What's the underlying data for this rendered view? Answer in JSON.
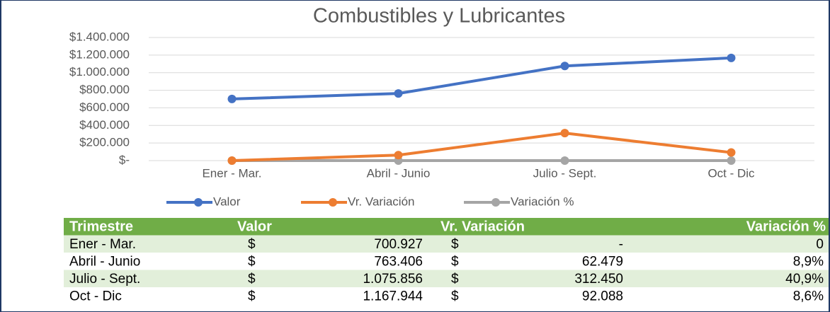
{
  "chart_data": {
    "type": "line",
    "title": "Combustibles y Lubricantes",
    "categories": [
      "Ener - Mar.",
      "Abril - Junio",
      "Julio - Sept.",
      "Oct - Dic"
    ],
    "series": [
      {
        "name": "Valor",
        "color": "#4472c4",
        "values": [
          700927,
          763406,
          1075856,
          1167944
        ]
      },
      {
        "name": "Vr. Variación",
        "color": "#ed7d31",
        "values": [
          0,
          62479,
          312450,
          92088
        ]
      },
      {
        "name": "Variación %",
        "color": "#a5a5a5",
        "values": [
          0,
          8.9,
          40.9,
          8.6
        ]
      }
    ],
    "ylim": [
      0,
      1400000
    ],
    "yticks": [
      {
        "value": 0,
        "label": "$-"
      },
      {
        "value": 200000,
        "label": "$200.000"
      },
      {
        "value": 400000,
        "label": "$400.000"
      },
      {
        "value": 600000,
        "label": "$600.000"
      },
      {
        "value": 800000,
        "label": "$800.000"
      },
      {
        "value": 1000000,
        "label": "$1.000.000"
      },
      {
        "value": 1200000,
        "label": "$1.200.000"
      },
      {
        "value": 1400000,
        "label": "$1.400.000"
      }
    ],
    "grid": true,
    "legend": "bottom"
  },
  "table": {
    "header": [
      "Trimestre",
      "Valor",
      "Vr. Variación",
      "Variación %"
    ],
    "rows": [
      [
        "Ener - Mar.",
        "$",
        "700.927",
        "$",
        "-",
        "0"
      ],
      [
        "Abril - Junio",
        "$",
        "763.406",
        "$",
        "62.479",
        "8,9%"
      ],
      [
        "Julio - Sept.",
        "$",
        "1.075.856",
        "$",
        "312.450",
        "40,9%"
      ],
      [
        "Oct - Dic",
        "$",
        "1.167.944",
        "$",
        "92.088",
        "8,6%"
      ]
    ]
  }
}
